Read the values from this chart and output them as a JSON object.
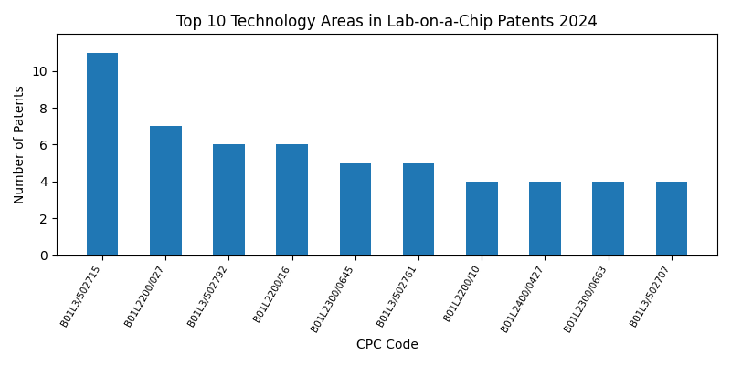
{
  "title": "Top 10 Technology Areas in Lab-on-a-Chip Patents 2024",
  "xlabel": "CPC Code",
  "ylabel": "Number of Patents",
  "categories": [
    "B01L3/502715",
    "B01L2200/027",
    "B01L3/502792",
    "B01L2200/16",
    "B01L2300/0645",
    "B01L3/502761",
    "B01L2200/10",
    "B01L2400/0427",
    "B01L2300/0663",
    "B01L3/502707"
  ],
  "values": [
    11,
    7,
    6,
    6,
    5,
    5,
    4,
    4,
    4,
    4
  ],
  "bar_color": "#2077b4",
  "bar_width": 0.5,
  "ylim": [
    0,
    12
  ],
  "yticks": [
    0,
    2,
    4,
    6,
    8,
    10
  ],
  "figsize": [
    8.0,
    4.0
  ],
  "dpi": 100,
  "tick_rotation": 60,
  "tick_fontsize": 7.5,
  "xlabel_fontsize": 10,
  "ylabel_fontsize": 10,
  "title_fontsize": 12
}
